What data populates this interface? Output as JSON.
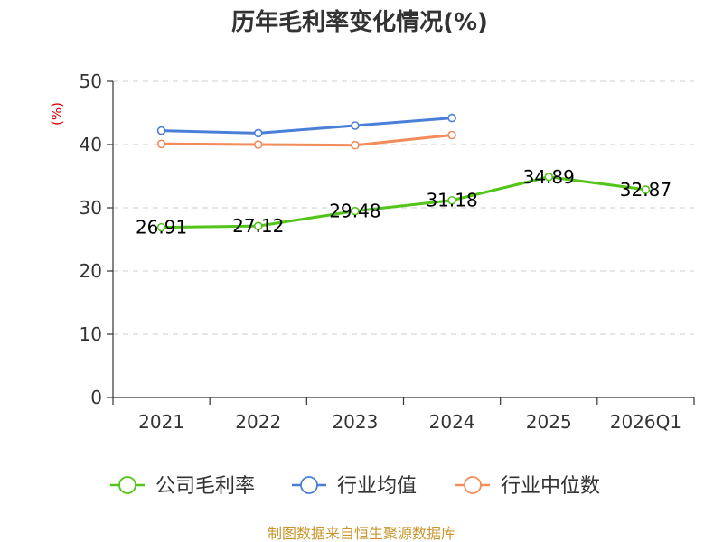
{
  "chart_data": {
    "type": "line",
    "title": "历年毛利率变化情况(%)",
    "unit_label": "(%)",
    "categories": [
      "2021",
      "2022",
      "2023",
      "2024",
      "2025",
      "2026Q1"
    ],
    "ylim": [
      0,
      50
    ],
    "yticks": [
      0,
      10,
      20,
      30,
      40,
      50
    ],
    "grid": true,
    "legend_position": "bottom",
    "series": [
      {
        "name": "公司毛利率",
        "color": "#52c41a",
        "values": [
          26.91,
          27.12,
          29.48,
          31.18,
          34.89,
          32.87
        ],
        "labels": [
          "26.91",
          "27.12",
          "29.48",
          "31.18",
          "34.89",
          "32.87"
        ]
      },
      {
        "name": "行业均值",
        "color": "#4a7fd8",
        "values": [
          42.2,
          41.8,
          43.0,
          44.2,
          null,
          null
        ]
      },
      {
        "name": "行业中位数",
        "color": "#f28c5a",
        "values": [
          40.1,
          40.0,
          39.9,
          41.5,
          null,
          null
        ]
      }
    ]
  },
  "source_text": "制图数据来自恒生聚源数据库"
}
